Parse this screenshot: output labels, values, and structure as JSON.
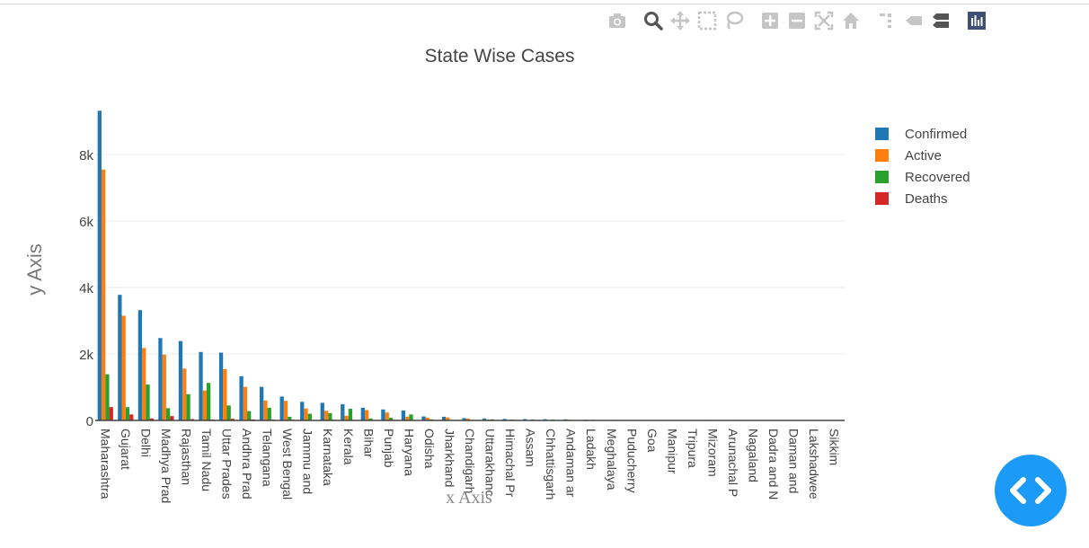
{
  "modebar": {
    "icons": [
      "camera-icon",
      "zoom-icon",
      "pan-icon",
      "box-select-icon",
      "lasso-select-icon",
      "zoom-in-icon",
      "zoom-out-icon",
      "autoscale-icon",
      "reset-axes-icon",
      "spike-lines-icon",
      "hover-closest-icon",
      "hover-compare-icon",
      "plotly-logo-icon"
    ]
  },
  "colors": {
    "confirmed": "#1f77b4",
    "active": "#ff7f0e",
    "recovered": "#2ca02c",
    "deaths": "#d62728",
    "fab": "#1b9bf7"
  },
  "chart_data": {
    "type": "bar",
    "title": "State Wise Cases",
    "xlabel": "x Axis",
    "ylabel": "y Axis",
    "ylim": [
      0,
      9300
    ],
    "yticks": [
      0,
      2000,
      4000,
      6000,
      8000
    ],
    "ytick_labels": [
      "0",
      "2k",
      "4k",
      "6k",
      "8k"
    ],
    "grid": true,
    "legend_position": "top-right",
    "categories": [
      "Maharashtra",
      "Gujarat",
      "Delhi",
      "Madhya Pradesh",
      "Rajasthan",
      "Tamil Nadu",
      "Uttar Pradesh",
      "Andhra Pradesh",
      "Telangana",
      "West Bengal",
      "Jammu and Kashmir",
      "Karnataka",
      "Kerala",
      "Bihar",
      "Punjab",
      "Haryana",
      "Odisha",
      "Jharkhand",
      "Chandigarh",
      "Uttarakhand",
      "Himachal Pradesh",
      "Assam",
      "Chhattisgarh",
      "Andaman and Nicobar Islands",
      "Ladakh",
      "Meghalaya",
      "Puducherry",
      "Goa",
      "Manipur",
      "Tripura",
      "Mizoram",
      "Arunachal Pradesh",
      "Nagaland",
      "Dadra and Nagar Haveli",
      "Daman and Diu",
      "Lakshadweep",
      "Sikkim"
    ],
    "tick_labels": [
      "Maharashtra",
      "Gujarat",
      "Delhi",
      "Madhya Prad",
      "Rajasthan",
      "Tamil Nadu",
      "Uttar Prades",
      "Andhra Prad",
      "Telangana",
      "West Bengal",
      "Jammu and",
      "Karnataka",
      "Kerala",
      "Bihar",
      "Punjab",
      "Haryana",
      "Odisha",
      "Jharkhand",
      "Chandigarh",
      "Uttarakhanc",
      "Himachal Pr",
      "Assam",
      "Chhattisgarh",
      "Andaman ar",
      "Ladakh",
      "Meghalaya",
      "Puducherry",
      "Goa",
      "Manipur",
      "Tripura",
      "Mizoram",
      "Arunachal P",
      "Nagaland",
      "Dadra and N",
      "Daman and",
      "Lakshadwee",
      "Sikkim"
    ],
    "series": [
      {
        "name": "Confirmed",
        "values": [
          9320,
          3780,
          3320,
          2480,
          2390,
          2060,
          2040,
          1330,
          1010,
          720,
          560,
          530,
          490,
          380,
          330,
          300,
          120,
          110,
          70,
          60,
          45,
          40,
          38,
          33,
          22,
          12,
          8,
          7,
          2,
          2,
          1,
          1,
          0,
          0,
          0,
          0,
          0
        ]
      },
      {
        "name": "Active",
        "values": [
          7550,
          3150,
          2180,
          1980,
          1560,
          900,
          1540,
          1010,
          600,
          590,
          360,
          290,
          140,
          310,
          240,
          110,
          85,
          90,
          55,
          25,
          16,
          8,
          10,
          22,
          5,
          10,
          4,
          0,
          0,
          0,
          1,
          0,
          0,
          0,
          0,
          0,
          0
        ]
      },
      {
        "name": "Recovered",
        "values": [
          1390,
          400,
          1080,
          370,
          790,
          1130,
          450,
          280,
          380,
          110,
          200,
          220,
          350,
          60,
          80,
          180,
          35,
          16,
          15,
          35,
          27,
          30,
          28,
          11,
          17,
          1,
          4,
          7,
          2,
          2,
          0,
          1,
          0,
          0,
          0,
          0,
          0
        ]
      },
      {
        "name": "Deaths",
        "values": [
          400,
          180,
          60,
          130,
          40,
          30,
          50,
          30,
          25,
          20,
          7,
          21,
          4,
          2,
          19,
          3,
          1,
          3,
          0,
          0,
          2,
          1,
          0,
          0,
          0,
          1,
          0,
          0,
          0,
          0,
          0,
          0,
          0,
          0,
          0,
          0,
          0
        ]
      }
    ]
  }
}
